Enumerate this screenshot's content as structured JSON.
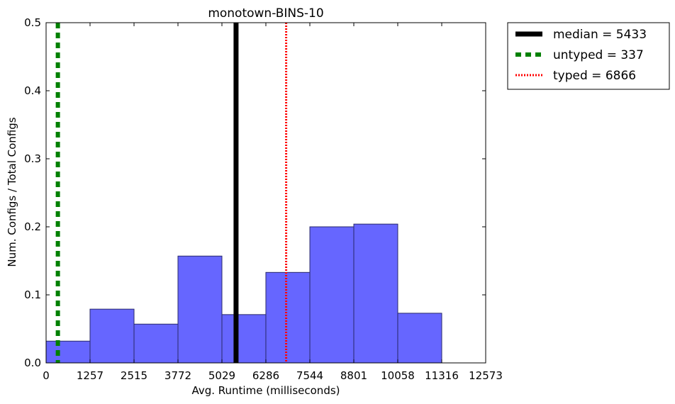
{
  "chart_data": {
    "type": "histogram",
    "title": "monotown-BINS-10",
    "xlabel": "Avg. Runtime (milliseconds)",
    "ylabel": "Num. Configs / Total Configs",
    "xlim": [
      0,
      12573
    ],
    "ylim": [
      0,
      0.5
    ],
    "x_ticks": [
      0,
      1257,
      2515,
      3772,
      5029,
      6286,
      7544,
      8801,
      10058,
      11316,
      12573
    ],
    "y_ticks": [
      0.0,
      0.1,
      0.2,
      0.3,
      0.4,
      0.5
    ],
    "x_tick_labels": [
      "0",
      "1257",
      "2515",
      "3772",
      "5029",
      "6286",
      "7544",
      "8801",
      "10058",
      "11316",
      "12573"
    ],
    "y_tick_labels": [
      "0.0",
      "0.1",
      "0.2",
      "0.3",
      "0.4",
      "0.5"
    ],
    "bin_edges": [
      0,
      1257,
      2515,
      3772,
      5029,
      6286,
      7544,
      8801,
      10058,
      11316
    ],
    "values": [
      0.032,
      0.079,
      0.057,
      0.157,
      0.071,
      0.133,
      0.2,
      0.204,
      0.073
    ],
    "bar_color": "#6666ff",
    "vlines": [
      {
        "label": "median = 5433",
        "x": 5433,
        "color": "#000000",
        "style": "solid"
      },
      {
        "label": "untyped = 337",
        "x": 337,
        "color": "#008000",
        "style": "dashed"
      },
      {
        "label": "typed = 6866",
        "x": 6866,
        "color": "#ff0000",
        "style": "dotted"
      }
    ],
    "legend_position": "outside-top-right",
    "grid": false
  }
}
